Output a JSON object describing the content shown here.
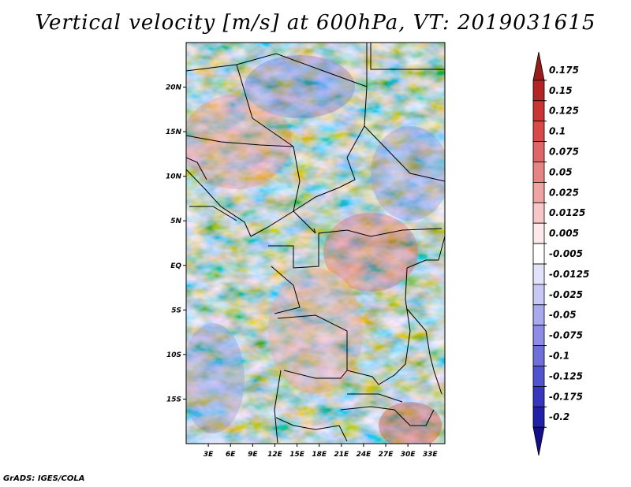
{
  "title": "Vertical velocity [m/s] at 600hPa, VT: 2019031615",
  "footer": "GrADS: IGES/COLA",
  "map": {
    "lat_labels": [
      "20N",
      "15N",
      "10N",
      "5N",
      "EQ",
      "5S",
      "10S",
      "15S"
    ],
    "lat_values": [
      20,
      15,
      10,
      5,
      0,
      -5,
      -10,
      -15
    ],
    "lon_labels": [
      "3E",
      "6E",
      "9E",
      "12E",
      "15E",
      "18E",
      "21E",
      "24E",
      "27E",
      "30E",
      "33E"
    ],
    "lon_values": [
      3,
      6,
      9,
      12,
      15,
      18,
      21,
      24,
      27,
      30,
      33
    ],
    "lon_range": [
      0,
      35
    ],
    "lat_range": [
      -20,
      25
    ]
  },
  "colorbar": {
    "labels": [
      "0.175",
      "0.15",
      "0.125",
      "0.1",
      "0.075",
      "0.05",
      "0.025",
      "0.0125",
      "0.005",
      "-0.005",
      "-0.0125",
      "-0.025",
      "-0.05",
      "-0.075",
      "-0.1",
      "-0.125",
      "-0.175",
      "-0.2"
    ],
    "colors": [
      "#9a1b1b",
      "#b52424",
      "#c93434",
      "#d84a4a",
      "#e06565",
      "#e88383",
      "#f0a3a3",
      "#f7c6c6",
      "#fde9e9",
      "#ffffff",
      "#e2e2fb",
      "#c8c8f6",
      "#a9a9ee",
      "#8d8de6",
      "#6f6fdc",
      "#5252cf",
      "#3636bf",
      "#2020aa",
      "#140e8c"
    ]
  }
}
